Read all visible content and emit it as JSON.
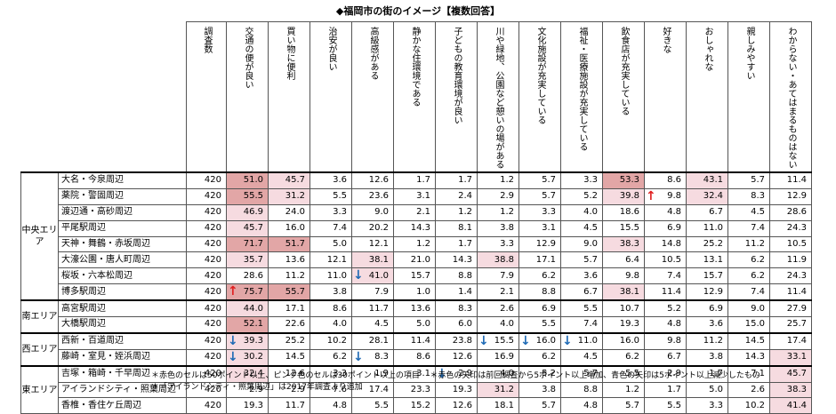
{
  "title": "◆福岡市の街のイメージ【複数回答】",
  "headers": [
    "調査数",
    "交通の便が良い",
    "買い物に便利",
    "治安が良い",
    "高級感がある",
    "静かな住環境である",
    "子どもの教育環境が良い",
    "川や緑地、公園など憩いの場がある",
    "文化施設が充実している",
    "福祉・医療施設が充実している",
    "飲食店が充実している",
    "好きな",
    "おしゃれな",
    "親しみやすい",
    "わからない・あてはまるものはない"
  ],
  "groups": [
    {
      "label": "中央エリア",
      "rows": [
        {
          "area": "大名・今泉周辺",
          "n": "420",
          "v": [
            "51.0",
            "45.7",
            "3.6",
            "12.6",
            "1.7",
            "1.7",
            "1.2",
            "5.7",
            "3.3",
            "53.3",
            "8.6",
            "43.1",
            "5.7",
            "11.4"
          ]
        },
        {
          "area": "薬院・警固周辺",
          "n": "420",
          "v": [
            "55.5",
            "31.2",
            "5.5",
            "23.6",
            "3.1",
            "2.4",
            "2.9",
            "5.7",
            "5.2",
            "39.8",
            "9.8",
            "32.4",
            "8.3",
            "12.9"
          ]
        },
        {
          "area": "渡辺通・高砂周辺",
          "n": "420",
          "v": [
            "46.9",
            "24.0",
            "3.3",
            "9.0",
            "2.1",
            "1.2",
            "1.2",
            "3.3",
            "4.0",
            "18.6",
            "4.8",
            "6.7",
            "4.5",
            "28.6"
          ]
        },
        {
          "area": "平尾駅周辺",
          "n": "420",
          "v": [
            "45.7",
            "16.0",
            "7.4",
            "20.2",
            "14.3",
            "8.1",
            "3.8",
            "3.1",
            "4.5",
            "15.5",
            "6.9",
            "11.0",
            "7.4",
            "24.3"
          ]
        },
        {
          "area": "天神・舞鶴・赤坂周辺",
          "n": "420",
          "v": [
            "71.7",
            "51.7",
            "5.0",
            "12.1",
            "1.2",
            "1.7",
            "3.3",
            "12.9",
            "9.0",
            "38.3",
            "14.8",
            "25.2",
            "11.2",
            "10.5"
          ]
        },
        {
          "area": "大濠公園・唐人町周辺",
          "n": "420",
          "v": [
            "35.7",
            "13.6",
            "12.1",
            "38.1",
            "21.0",
            "14.3",
            "38.8",
            "17.1",
            "5.7",
            "6.4",
            "10.5",
            "13.1",
            "6.2",
            "11.9"
          ]
        },
        {
          "area": "桜坂・六本松周辺",
          "n": "420",
          "v": [
            "28.6",
            "11.2",
            "11.0",
            "41.0",
            "15.7",
            "8.8",
            "7.9",
            "6.2",
            "3.6",
            "9.8",
            "7.4",
            "15.7",
            "6.2",
            "24.3"
          ]
        },
        {
          "area": "博多駅周辺",
          "n": "420",
          "v": [
            "75.7",
            "55.7",
            "3.8",
            "7.9",
            "1.0",
            "1.4",
            "2.1",
            "8.8",
            "6.7",
            "38.1",
            "11.4",
            "12.9",
            "7.4",
            "11.4"
          ]
        }
      ]
    },
    {
      "label": "南エリア",
      "rows": [
        {
          "area": "高宮駅周辺",
          "n": "420",
          "v": [
            "44.0",
            "17.1",
            "8.6",
            "11.7",
            "13.6",
            "8.3",
            "2.6",
            "6.9",
            "5.5",
            "10.7",
            "5.2",
            "6.9",
            "9.0",
            "27.9"
          ]
        },
        {
          "area": "大橋駅周辺",
          "n": "420",
          "v": [
            "52.1",
            "22.6",
            "4.0",
            "4.5",
            "5.0",
            "6.0",
            "4.0",
            "5.5",
            "7.4",
            "19.3",
            "4.8",
            "3.6",
            "15.0",
            "25.7"
          ]
        }
      ]
    },
    {
      "label": "西エリア",
      "rows": [
        {
          "area": "西新・百道周辺",
          "n": "420",
          "v": [
            "39.3",
            "25.2",
            "10.2",
            "28.1",
            "11.4",
            "23.8",
            "15.5",
            "16.0",
            "11.0",
            "16.0",
            "9.8",
            "11.2",
            "14.5",
            "17.4"
          ]
        },
        {
          "area": "藤崎・室見・姪浜周辺",
          "n": "420",
          "v": [
            "30.2",
            "14.5",
            "6.2",
            "8.3",
            "8.6",
            "12.6",
            "16.9",
            "6.2",
            "4.5",
            "6.2",
            "6.7",
            "3.8",
            "14.3",
            "33.1"
          ]
        }
      ]
    },
    {
      "label": "東エリア",
      "rows": [
        {
          "area": "吉塚・箱崎・千早周辺",
          "n": "420",
          "v": [
            "32.4",
            "12.6",
            "3.3",
            "1.9",
            "3.1",
            "2.9",
            "4.0",
            "5.2",
            "5.7",
            "5.5",
            "2.9",
            "1.7",
            "7.1",
            "45.7"
          ]
        },
        {
          "area": "アイランドシティ・照葉周辺",
          "n": "420",
          "v": [
            "2.9",
            "2.9",
            "7.6",
            "17.4",
            "23.3",
            "19.3",
            "31.2",
            "3.8",
            "8.8",
            "1.2",
            "1.7",
            "5.0",
            "2.6",
            "38.3"
          ]
        },
        {
          "area": "香椎・香住ケ丘周辺",
          "n": "420",
          "v": [
            "19.3",
            "11.7",
            "4.8",
            "5.5",
            "15.2",
            "12.6",
            "18.1",
            "5.7",
            "4.8",
            "5.7",
            "5.5",
            "3.3",
            "10.2",
            "41.4"
          ]
        }
      ]
    }
  ],
  "notes": [
    "＊赤色のセルは50ポイント以上、ピンク色のセルは30ポイント以上の項目",
    "＊赤色の矢印は前回調査から5ポイント以上増加、青色の矢印は5ポイント以上減少したもの",
    "＊「アイランドシティ・照葉周辺」は2017年調査より追加"
  ],
  "arrows": [
    {
      "row": 1,
      "col": 11,
      "dir": "up"
    },
    {
      "row": 7,
      "col": 1,
      "dir": "up"
    },
    {
      "row": 6,
      "col": 4,
      "dir": "down"
    },
    {
      "row": 10,
      "col": 1,
      "dir": "down"
    },
    {
      "row": 10,
      "col": 7,
      "dir": "down"
    },
    {
      "row": 10,
      "col": 8,
      "dir": "down"
    },
    {
      "row": 10,
      "col": 9,
      "dir": "down"
    },
    {
      "row": 11,
      "col": 1,
      "dir": "down"
    },
    {
      "row": 11,
      "col": 4,
      "dir": "down"
    },
    {
      "row": 12,
      "col": 6,
      "dir": "down"
    }
  ],
  "arrow_glyphs": {
    "up": "↑",
    "down": "↓"
  },
  "colors": {
    "red_cell": "#e2a6a6",
    "pink_cell": "#f6dbe0",
    "up_arrow": "#e02020",
    "down_arrow": "#1e6ab5"
  }
}
